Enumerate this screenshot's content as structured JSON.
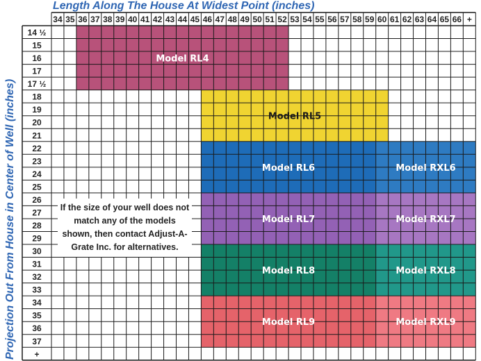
{
  "chart_data": {
    "type": "table",
    "xlabel": "Length Along The House At Widest Point (inches)",
    "ylabel": "Projection Out From House in Center of Well (inches)",
    "x_labels": [
      "34",
      "35",
      "36",
      "37",
      "38",
      "39",
      "40",
      "41",
      "42",
      "43",
      "44",
      "45",
      "46",
      "47",
      "48",
      "49",
      "50",
      "51",
      "52",
      "53",
      "54",
      "55",
      "56",
      "57",
      "58",
      "59",
      "60",
      "61",
      "62",
      "63",
      "64",
      "65",
      "66",
      "+"
    ],
    "y_labels": [
      "14 ½",
      "15",
      "16",
      "17",
      "17 ½",
      "18",
      "19",
      "20",
      "21",
      "22",
      "23",
      "24",
      "25",
      "26",
      "27",
      "28",
      "29",
      "30",
      "31",
      "32",
      "33",
      "34",
      "35",
      "36",
      "37",
      "+"
    ],
    "models": [
      {
        "name": "Model RL4",
        "x_from": "36",
        "x_to": "52",
        "y_from": "14 ½",
        "y_to": "17 ½",
        "color": "#b8527a"
      },
      {
        "name": "Model RL5",
        "x_from": "46",
        "x_to": "60",
        "y_from": "18",
        "y_to": "21",
        "color": "#f0d431"
      },
      {
        "name": "Model RL6",
        "x_from": "46",
        "x_to": "59",
        "y_from": "22",
        "y_to": "25",
        "color": "#1e6cb8"
      },
      {
        "name": "Model RXL6",
        "x_from": "60",
        "x_to": "+",
        "y_from": "22",
        "y_to": "25",
        "color": "#2e7bc2"
      },
      {
        "name": "Model RL7",
        "x_from": "46",
        "x_to": "59",
        "y_from": "26",
        "y_to": "29",
        "color": "#9361b5"
      },
      {
        "name": "Model RXL7",
        "x_from": "60",
        "x_to": "+",
        "y_from": "26",
        "y_to": "29",
        "color": "#a777c2"
      },
      {
        "name": "Model RL8",
        "x_from": "46",
        "x_to": "59",
        "y_from": "30",
        "y_to": "33",
        "color": "#148067"
      },
      {
        "name": "Model RXL8",
        "x_from": "60",
        "x_to": "+",
        "y_from": "30",
        "y_to": "33",
        "color": "#21988a"
      },
      {
        "name": "Model RL9",
        "x_from": "46",
        "x_to": "59",
        "y_from": "34",
        "y_to": "37",
        "color": "#e5636a"
      },
      {
        "name": "Model RXL9",
        "x_from": "60",
        "x_to": "+",
        "y_from": "34",
        "y_to": "37",
        "color": "#ef7a83"
      }
    ],
    "label_colors": {
      "Model RL4": "#ffffff",
      "Model RL5": "#1a1a1a",
      "Model RL6": "#ffffff",
      "Model RXL6": "#ffffff",
      "Model RL7": "#ffffff",
      "Model RXL7": "#ffffff",
      "Model RL8": "#ffffff",
      "Model RXL8": "#ffffff",
      "Model RL9": "#ffffff",
      "Model RXL9": "#ffffff"
    },
    "grid": true,
    "header_color": "#2f66b3"
  },
  "note_text": "If the size of your well does not match any of the models shown, then contact Adjust-A-Grate Inc. for alternatives."
}
